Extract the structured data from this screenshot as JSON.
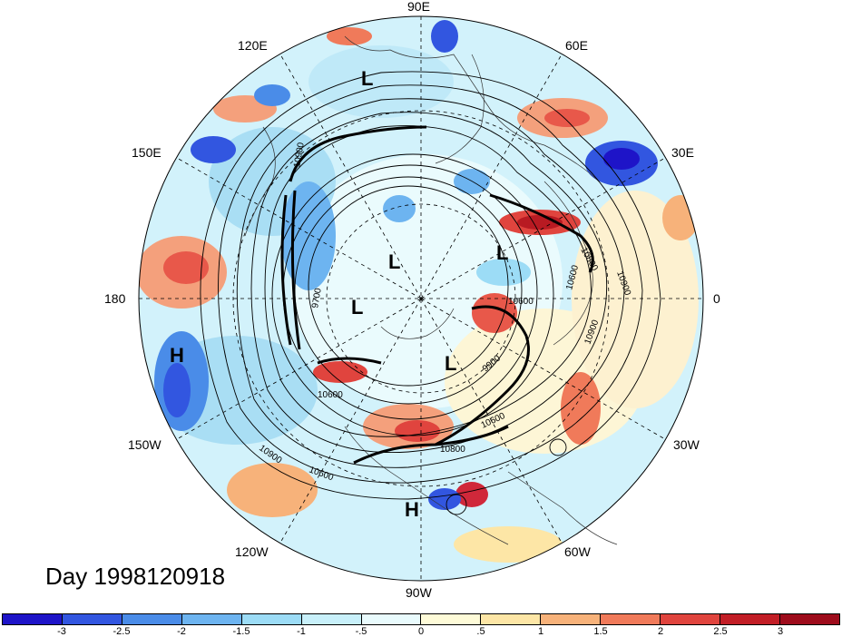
{
  "map": {
    "title": "Day 1998120918",
    "longitude_labels": [
      {
        "key": "lon_90e",
        "text": "90E"
      },
      {
        "key": "lon_60e",
        "text": "60E"
      },
      {
        "key": "lon_30e",
        "text": "30E"
      },
      {
        "key": "lon_0",
        "text": "0"
      },
      {
        "key": "lon_30w",
        "text": "30W"
      },
      {
        "key": "lon_60w",
        "text": "60W"
      },
      {
        "key": "lon_90w",
        "text": "90W"
      },
      {
        "key": "lon_120w",
        "text": "120W"
      },
      {
        "key": "lon_150w",
        "text": "150W"
      },
      {
        "key": "lon_180",
        "text": "180"
      },
      {
        "key": "lon_150e",
        "text": "150E"
      },
      {
        "key": "lon_120e",
        "text": "120E"
      }
    ],
    "pressure_systems": [
      "L",
      "L",
      "L",
      "L",
      "L",
      "H",
      "H"
    ],
    "contour_labels": [
      "10900",
      "10900",
      "10900",
      "10900",
      "10600",
      "10600",
      "10600",
      "10600",
      "10600",
      "9900",
      "9700",
      "10800",
      "10800"
    ],
    "colorbar": {
      "ticks": [
        "-3",
        "-2.5",
        "-2",
        "-1.5",
        "-1",
        "-.5",
        "0",
        ".5",
        "1",
        "1.5",
        "2",
        "2.5",
        "3"
      ],
      "colors": [
        "#1e14c8",
        "#3256e0",
        "#4a8ce8",
        "#6db4f0",
        "#9cdcf6",
        "#c8f0fa",
        "#e9fbfd",
        "#fefbd8",
        "#fde6a6",
        "#f7b27a",
        "#f07a5a",
        "#e0443e",
        "#c21e26",
        "#9e0c1c"
      ]
    }
  }
}
